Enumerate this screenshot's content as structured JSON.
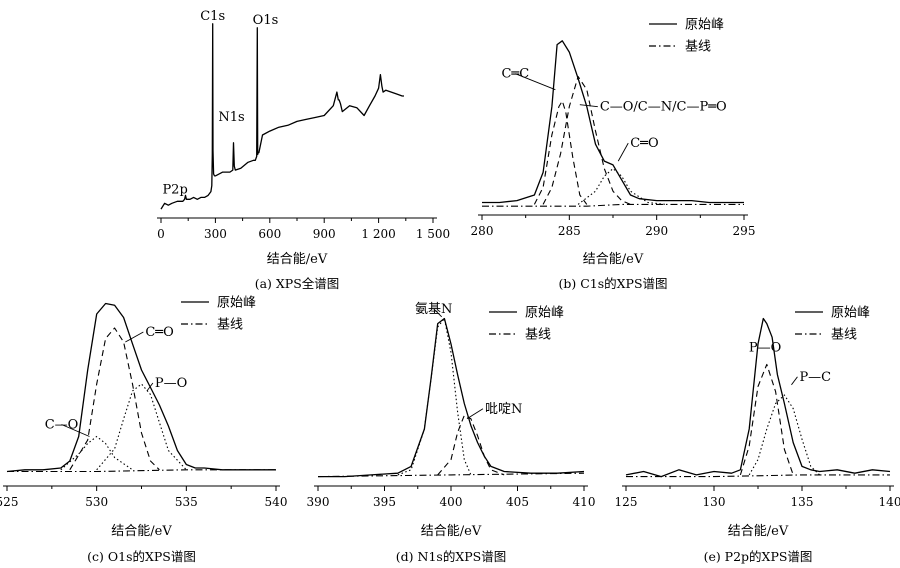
{
  "chart_data": [
    {
      "id": "a",
      "type": "line",
      "caption": "(a)  XPS全谱图",
      "xlabel": "结合能/eV",
      "xlim": [
        0,
        1500
      ],
      "xticks": [
        0,
        300,
        600,
        900,
        1200,
        1500
      ],
      "xtick_labels": [
        "0",
        "300",
        "600",
        "900",
        "1 200",
        "1 500"
      ],
      "ylim": [
        0,
        100
      ],
      "annotations": [
        {
          "text": "C1s",
          "x": 285,
          "y": 97
        },
        {
          "text": "O1s",
          "x": 532,
          "y": 95
        },
        {
          "text": "N1s",
          "x": 400,
          "y": 44
        },
        {
          "text": "P2p",
          "x": 133,
          "y": 8
        }
      ],
      "series": [
        {
          "style": "solid",
          "x": [
            0,
            20,
            40,
            60,
            90,
            120,
            130,
            135,
            140,
            160,
            180,
            200,
            220,
            240,
            260,
            275,
            280,
            283,
            285,
            287,
            290,
            295,
            300,
            340,
            380,
            396,
            400,
            404,
            410,
            440,
            480,
            510,
            520,
            528,
            531,
            533,
            536,
            540,
            560,
            600,
            650,
            700,
            750,
            800,
            850,
            900,
            950,
            970,
            978,
            982,
            990,
            1000,
            1040,
            1080,
            1120,
            1150,
            1180,
            1200,
            1210,
            1218,
            1225,
            1240,
            1270,
            1300,
            1330,
            1340
          ],
          "y": [
            2,
            5,
            4,
            5,
            6,
            6,
            7,
            9,
            7,
            7,
            8,
            7,
            8,
            8,
            9,
            11,
            14,
            30,
            97,
            32,
            20,
            19,
            19,
            21,
            21,
            22,
            36,
            24,
            22,
            23,
            26,
            27,
            27,
            29,
            95,
            30,
            31,
            31,
            40,
            42,
            44,
            45,
            47,
            48,
            49,
            50,
            55,
            62,
            58,
            58,
            56,
            52,
            55,
            54,
            50,
            55,
            60,
            64,
            71,
            65,
            62,
            63,
            62,
            61,
            60,
            60
          ]
        }
      ]
    },
    {
      "id": "b",
      "type": "line",
      "caption": "(b)  C1s的XPS谱图",
      "xlabel": "结合能/eV",
      "xlim": [
        280,
        295
      ],
      "xticks": [
        280,
        285,
        290,
        295
      ],
      "ylim": [
        0,
        100
      ],
      "legend": [
        {
          "style": "solid",
          "label": "原始峰"
        },
        {
          "style": "dashdot",
          "label": "基线"
        }
      ],
      "annotations": [
        {
          "text": "C═C",
          "x": 284.2,
          "y": 64
        },
        {
          "text": "C—O/C—N/C—P═O",
          "x": 285.6,
          "y": 56
        },
        {
          "text": "C═O",
          "x": 287.8,
          "y": 26
        }
      ],
      "series": [
        {
          "style": "solid",
          "x": [
            280,
            281,
            282,
            283,
            283.5,
            284,
            284.3,
            284.6,
            285,
            285.5,
            286,
            286.5,
            287,
            287.5,
            288,
            288.5,
            289,
            290,
            291,
            292,
            293,
            294,
            295
          ],
          "y": [
            4,
            4,
            5,
            8,
            20,
            55,
            88,
            90,
            84,
            70,
            55,
            35,
            26,
            24,
            16,
            8,
            6,
            5,
            5,
            5,
            4,
            4,
            4
          ]
        },
        {
          "style": "dashed",
          "x": [
            283,
            283.5,
            284,
            284.4,
            284.6,
            284.8,
            285.2,
            285.6,
            286
          ],
          "y": [
            3,
            12,
            40,
            55,
            58,
            52,
            28,
            8,
            3
          ]
        },
        {
          "style": "dashed",
          "x": [
            283.5,
            284,
            284.5,
            285,
            285.5,
            286,
            286.5,
            287,
            287.5,
            288,
            288.5
          ],
          "y": [
            3,
            12,
            30,
            55,
            71,
            64,
            42,
            22,
            10,
            5,
            3
          ]
        },
        {
          "style": "dotted",
          "x": [
            285.5,
            286.5,
            287,
            287.5,
            288,
            288.5,
            289.5,
            290.5
          ],
          "y": [
            3,
            10,
            18,
            22,
            18,
            10,
            4,
            3
          ]
        },
        {
          "style": "dashdot",
          "x": [
            280,
            282,
            284,
            286,
            288,
            290,
            292,
            295
          ],
          "y": [
            2,
            2,
            2,
            2,
            3,
            3,
            3,
            3
          ]
        }
      ]
    },
    {
      "id": "c",
      "type": "line",
      "caption": "(c)  O1s的XPS谱图",
      "xlabel": "结合能/eV",
      "xlim": [
        525,
        540
      ],
      "xticks": [
        525,
        530,
        535,
        540
      ],
      "ylim": [
        0,
        100
      ],
      "legend": [
        {
          "style": "solid",
          "label": "原始峰"
        },
        {
          "style": "dashdot",
          "label": "基线"
        }
      ],
      "annotations": [
        {
          "text": "C═O",
          "x": 531.6,
          "y": 76
        },
        {
          "text": "P—O",
          "x": 532.8,
          "y": 48
        },
        {
          "text": "C—O",
          "x": 529.6,
          "y": 22
        }
      ],
      "series": [
        {
          "style": "solid",
          "x": [
            525,
            526,
            527,
            528,
            528.5,
            529,
            529.5,
            530,
            530.5,
            531,
            531.5,
            532,
            532.5,
            533,
            533.5,
            534,
            534.5,
            535,
            535.5,
            536,
            537,
            538,
            539,
            540
          ],
          "y": [
            2,
            3,
            3,
            4,
            8,
            22,
            60,
            92,
            98,
            97,
            90,
            75,
            60,
            50,
            40,
            28,
            14,
            6,
            4,
            4,
            3,
            3,
            3,
            3
          ]
        },
        {
          "style": "dashed",
          "x": [
            528.5,
            529.5,
            530,
            530.5,
            531,
            531.5,
            532,
            532.5,
            533,
            533.5
          ],
          "y": [
            3,
            20,
            52,
            78,
            84,
            76,
            52,
            24,
            8,
            3
          ]
        },
        {
          "style": "dotted",
          "x": [
            530,
            531,
            531.5,
            532,
            532.5,
            533,
            533.5,
            534,
            535
          ],
          "y": [
            3,
            15,
            32,
            48,
            52,
            46,
            30,
            14,
            3
          ]
        },
        {
          "style": "dotted",
          "x": [
            528,
            529,
            529.5,
            530,
            530.5,
            531,
            532
          ],
          "y": [
            3,
            12,
            18,
            22,
            18,
            10,
            3
          ]
        },
        {
          "style": "dashdot",
          "x": [
            525,
            530,
            535,
            540
          ],
          "y": [
            2,
            2,
            3,
            3
          ]
        }
      ]
    },
    {
      "id": "d",
      "type": "line",
      "caption": "(d)  N1s的XPS谱图",
      "xlabel": "结合能/eV",
      "xlim": [
        390,
        410
      ],
      "xticks": [
        390,
        395,
        400,
        405,
        410
      ],
      "ylim": [
        0,
        100
      ],
      "legend": [
        {
          "style": "solid",
          "label": "原始峰"
        },
        {
          "style": "dashdot",
          "label": "基线"
        }
      ],
      "annotations": [
        {
          "text": "氨基N",
          "x": 399.3,
          "y": 96
        },
        {
          "text": "吡啶N",
          "x": 401.2,
          "y": 36
        }
      ],
      "series": [
        {
          "style": "solid",
          "x": [
            390,
            392,
            394,
            396,
            397,
            398,
            398.5,
            399,
            399.5,
            400,
            400.5,
            401,
            401.5,
            402,
            402.5,
            403,
            404,
            406,
            408,
            410
          ],
          "y": [
            2,
            2,
            3,
            4,
            8,
            30,
            60,
            92,
            95,
            80,
            62,
            45,
            32,
            22,
            14,
            8,
            5,
            4,
            4,
            5
          ]
        },
        {
          "style": "dotted",
          "x": [
            396,
            397,
            398,
            398.5,
            399,
            399.5,
            400,
            400.5,
            401,
            401.5
          ],
          "y": [
            3,
            6,
            30,
            60,
            90,
            95,
            75,
            40,
            12,
            3
          ]
        },
        {
          "style": "dashed",
          "x": [
            399,
            400,
            400.5,
            401,
            401.5,
            402,
            402.5,
            403,
            404
          ],
          "y": [
            3,
            12,
            28,
            38,
            36,
            26,
            14,
            6,
            3
          ]
        },
        {
          "style": "dashdot",
          "x": [
            390,
            400,
            410
          ],
          "y": [
            2,
            3,
            4
          ]
        }
      ]
    },
    {
      "id": "e",
      "type": "line",
      "caption": "(e)  P2p的XPS谱图",
      "xlabel": "结合能/eV",
      "xlim": [
        125,
        140
      ],
      "xticks": [
        125,
        130,
        135,
        140
      ],
      "ylim": [
        0,
        100
      ],
      "legend": [
        {
          "style": "solid",
          "label": "原始峰"
        },
        {
          "style": "dashdot",
          "label": "基线"
        }
      ],
      "annotations": [
        {
          "text": "P—O",
          "x": 132.9,
          "y": 72
        },
        {
          "text": "P—C",
          "x": 134.4,
          "y": 56
        }
      ],
      "series": [
        {
          "style": "solid",
          "x": [
            125,
            126,
            127,
            128,
            129,
            130,
            131,
            131.5,
            132,
            132.5,
            132.8,
            133,
            133.3,
            133.6,
            134,
            134.5,
            135,
            135.5,
            136,
            137,
            138,
            139,
            140
          ],
          "y": [
            3,
            5,
            2,
            6,
            3,
            5,
            4,
            6,
            30,
            80,
            95,
            92,
            84,
            62,
            45,
            22,
            8,
            6,
            5,
            6,
            4,
            6,
            5
          ]
        },
        {
          "style": "dashed",
          "x": [
            131.5,
            132,
            132.5,
            133,
            133.5,
            134,
            134.5
          ],
          "y": [
            3,
            20,
            55,
            68,
            52,
            18,
            3
          ]
        },
        {
          "style": "dotted",
          "x": [
            132,
            132.5,
            133,
            133.5,
            134,
            134.5,
            135,
            135.5,
            136
          ],
          "y": [
            3,
            12,
            30,
            45,
            50,
            42,
            24,
            8,
            3
          ]
        },
        {
          "style": "dashdot",
          "x": [
            125,
            130,
            135,
            140
          ],
          "y": [
            2,
            2,
            3,
            3
          ]
        }
      ]
    }
  ]
}
